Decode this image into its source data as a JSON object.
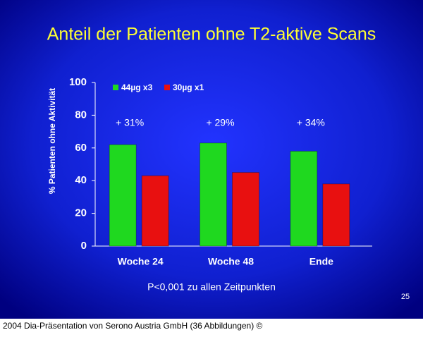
{
  "chart_data": {
    "type": "bar",
    "title": "Anteil der Patienten ohne T2-aktive Scans",
    "y_label": "% Patienten ohne Aktivität",
    "categories": [
      "Woche 24",
      "Woche 48",
      "Ende"
    ],
    "series": [
      {
        "name": "44µg x3",
        "color": "#1fd81f",
        "values": [
          62,
          63,
          58
        ]
      },
      {
        "name": "30µg x1",
        "color": "#e81010",
        "values": [
          43,
          45,
          38
        ]
      }
    ],
    "annotations": [
      "+ 31%",
      "+ 29%",
      "+ 34%"
    ],
    "ylim": [
      0,
      100
    ],
    "yticks": [
      0,
      20,
      40,
      60,
      80,
      100
    ],
    "footnote": "P<0,001 zu allen Zeitpunkten",
    "page_number": "25",
    "caption": "2004 Dia-Präsentation von Serono Austria GmbH (36 Abbildungen) ©"
  }
}
